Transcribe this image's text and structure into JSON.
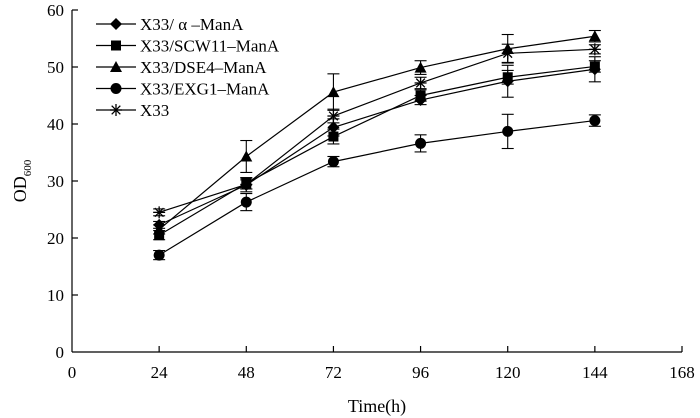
{
  "chart_data": {
    "type": "line",
    "title": "",
    "xlabel": "Time(h)",
    "ylabel": "OD",
    "ylabel_subscript": "600",
    "xlim": [
      0,
      168
    ],
    "ylim": [
      0,
      60
    ],
    "xticks": [
      0,
      24,
      48,
      72,
      96,
      120,
      144,
      168
    ],
    "yticks": [
      0,
      10,
      20,
      30,
      40,
      50,
      60
    ],
    "grid": false,
    "legend_position": "top-left",
    "x": [
      24,
      48,
      72,
      96,
      120,
      144
    ],
    "series": [
      {
        "name": "X33/ α –ManA",
        "marker": "diamond",
        "color": "#000000",
        "values": [
          22.3,
          29.3,
          39.4,
          44.2,
          47.5,
          49.6
        ],
        "errors": [
          0.6,
          1.2,
          1.5,
          0.8,
          2.8,
          2.2
        ]
      },
      {
        "name": "X33/SCW11–ManA",
        "marker": "square",
        "color": "#000000",
        "values": [
          20.5,
          29.6,
          37.8,
          45.0,
          48.2,
          50.1
        ],
        "errors": [
          0.8,
          1.0,
          1.3,
          1.0,
          1.2,
          1.0
        ]
      },
      {
        "name": "X33/DSE4–ManA",
        "marker": "triangle",
        "color": "#000000",
        "values": [
          21.5,
          34.3,
          45.6,
          49.9,
          53.2,
          55.4
        ],
        "errors": [
          0.8,
          2.8,
          3.2,
          1.2,
          2.5,
          1.0
        ]
      },
      {
        "name": "X33/EXG1–ManA",
        "marker": "circle",
        "color": "#000000",
        "values": [
          17.0,
          26.3,
          33.4,
          36.6,
          38.7,
          40.6
        ],
        "errors": [
          0.8,
          1.5,
          0.9,
          1.5,
          3.0,
          1.0
        ]
      },
      {
        "name": "X33",
        "marker": "asterisk",
        "color": "#000000",
        "values": [
          24.5,
          29.4,
          41.4,
          47.2,
          52.4,
          53.1
        ],
        "errors": [
          0.6,
          0.8,
          1.2,
          1.0,
          1.6,
          0.8
        ]
      }
    ]
  }
}
